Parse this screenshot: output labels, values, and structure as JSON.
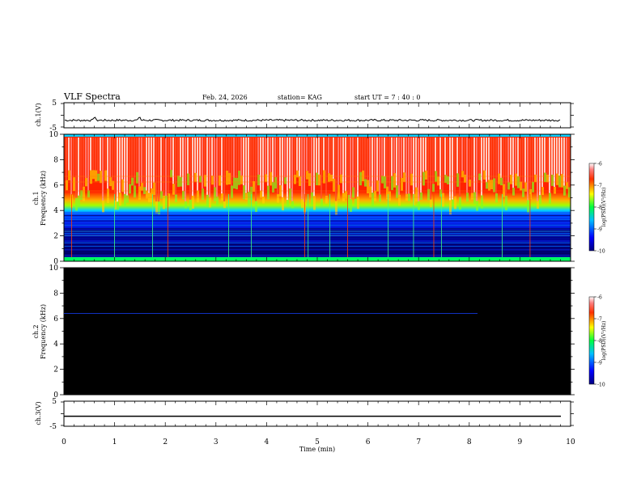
{
  "header": {
    "title": "VLF Spectra",
    "date": "Feb. 24, 2026",
    "station": "station= KAG",
    "start": "start  UT =   7 : 40 : 0"
  },
  "chart_data": [
    {
      "type": "line",
      "panel": "ch1-waveform",
      "ylabel": "ch.1(V)",
      "ylim": [
        -5,
        5
      ],
      "yticks": [
        "5",
        "-5"
      ],
      "xlim": [
        0,
        10
      ],
      "baseline": -2.0
    },
    {
      "type": "heatmap",
      "panel": "ch1-spectrogram",
      "ylabel_line1": "ch.1",
      "ylabel_line2": "Frequency (kHz)",
      "ylim": [
        0,
        10
      ],
      "yticks": [
        "0",
        "2",
        "4",
        "6",
        "8",
        "10"
      ],
      "xlim": [
        0,
        10
      ],
      "colorbar": {
        "label": "log(PSD)(V²/Hz)",
        "ticks": [
          "-6",
          "-7",
          "-8",
          "-9",
          "-10"
        ],
        "range": [
          -10,
          -6
        ]
      },
      "vertical_line_times_min": [
        0.15,
        1.0,
        1.75,
        2.05,
        3.25,
        3.7,
        4.75,
        4.82,
        5.25,
        5.6,
        6.4,
        6.9,
        7.3,
        7.45,
        8.65,
        9.2
      ]
    },
    {
      "type": "heatmap",
      "panel": "ch2-spectrogram",
      "ylabel_line1": "ch.2",
      "ylabel_line2": "Frequency (kHz)",
      "ylim": [
        0,
        10
      ],
      "yticks": [
        "0",
        "2",
        "4",
        "6",
        "8",
        "10"
      ],
      "xlim": [
        0,
        10
      ],
      "line_freq_khz": 6.4,
      "colorbar": {
        "label": "log(PSD)(V²/Hz)",
        "ticks": [
          "-6",
          "-7",
          "-8",
          "-9",
          "-10"
        ],
        "range": [
          -10,
          -6
        ]
      }
    },
    {
      "type": "line",
      "panel": "ch3-waveform",
      "ylabel": "ch.3(V)",
      "ylim": [
        -5,
        5
      ],
      "yticks": [
        "5",
        "-5"
      ],
      "xlim": [
        0,
        10
      ],
      "baseline": -1.0
    }
  ],
  "xaxis": {
    "label": "Time  (min)",
    "ticks": [
      "0",
      "1",
      "2",
      "3",
      "4",
      "5",
      "6",
      "7",
      "8",
      "9",
      "10"
    ]
  }
}
